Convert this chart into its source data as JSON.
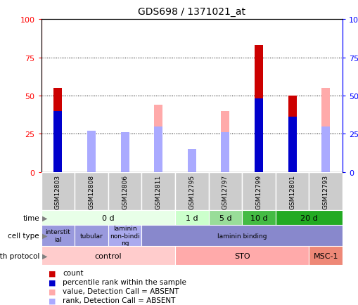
{
  "title": "GDS698 / 1371021_at",
  "samples": [
    "GSM12803",
    "GSM12808",
    "GSM12806",
    "GSM12811",
    "GSM12795",
    "GSM12797",
    "GSM12799",
    "GSM12801",
    "GSM12793"
  ],
  "count_values": [
    55,
    0,
    0,
    0,
    0,
    0,
    83,
    50,
    0
  ],
  "percentile_values": [
    40,
    0,
    0,
    0,
    0,
    0,
    48,
    36,
    0
  ],
  "absent_value_values": [
    0,
    27,
    26,
    44,
    15,
    40,
    0,
    0,
    55
  ],
  "absent_rank_values": [
    0,
    27,
    26,
    30,
    15,
    26,
    0,
    0,
    30
  ],
  "ylim": [
    0,
    100
  ],
  "grid_lines": [
    25,
    50,
    75
  ],
  "color_count": "#cc0000",
  "color_percentile": "#0000cc",
  "color_absent_value": "#ffaaaa",
  "color_absent_rank": "#aaaaff",
  "time_groups": [
    {
      "label": "0 d",
      "start": 0,
      "end": 4,
      "color": "#e8ffe8"
    },
    {
      "label": "1 d",
      "start": 4,
      "end": 5,
      "color": "#ccffcc"
    },
    {
      "label": "5 d",
      "start": 5,
      "end": 6,
      "color": "#99dd99"
    },
    {
      "label": "10 d",
      "start": 6,
      "end": 7,
      "color": "#44bb44"
    },
    {
      "label": "20 d",
      "start": 7,
      "end": 9,
      "color": "#22aa22"
    }
  ],
  "cell_type_groups": [
    {
      "label": "interstit\nial",
      "start": 0,
      "end": 1,
      "color": "#9999dd"
    },
    {
      "label": "tubular",
      "start": 1,
      "end": 2,
      "color": "#9999dd"
    },
    {
      "label": "laminin\nnon-bindi\nng",
      "start": 2,
      "end": 3,
      "color": "#aaaaee"
    },
    {
      "label": "laminin binding",
      "start": 3,
      "end": 9,
      "color": "#8888cc"
    }
  ],
  "growth_protocol_groups": [
    {
      "label": "control",
      "start": 0,
      "end": 4,
      "color": "#ffcccc"
    },
    {
      "label": "STO",
      "start": 4,
      "end": 8,
      "color": "#ffaaaa"
    },
    {
      "label": "MSC-1",
      "start": 8,
      "end": 9,
      "color": "#ee8877"
    }
  ],
  "legend_items": [
    {
      "label": "count",
      "color": "#cc0000"
    },
    {
      "label": "percentile rank within the sample",
      "color": "#0000cc"
    },
    {
      "label": "value, Detection Call = ABSENT",
      "color": "#ffaaaa"
    },
    {
      "label": "rank, Detection Call = ABSENT",
      "color": "#aaaaff"
    }
  ],
  "row_labels": [
    "time",
    "cell type",
    "growth protocol"
  ]
}
